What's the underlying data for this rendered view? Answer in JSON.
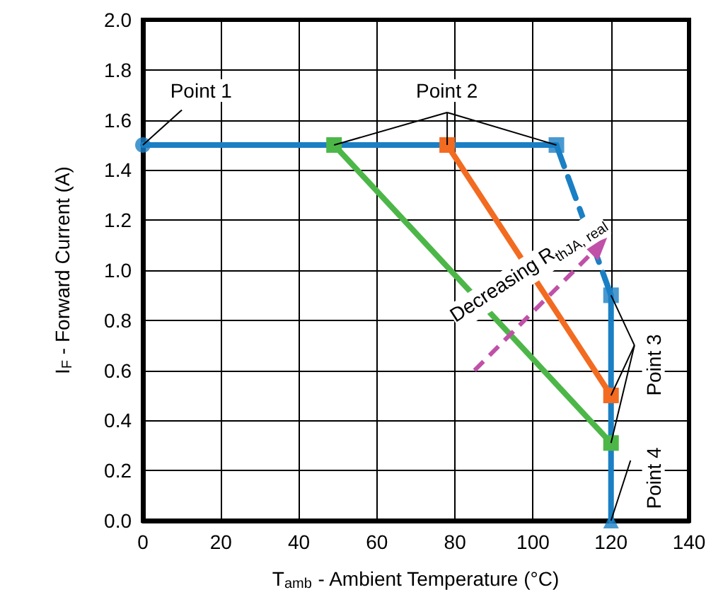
{
  "chart_data": {
    "type": "line",
    "xlabel": "T$_{amb}$ - Ambient Temperature (°C)",
    "ylabel": "I$_{F}$ - Forward Current (A)",
    "xlim": [
      0,
      140
    ],
    "xticks": [
      0,
      20,
      40,
      60,
      80,
      100,
      120,
      140
    ],
    "ylim": [
      0,
      2
    ],
    "yticks": [
      {
        "value": 0,
        "label": "0.0"
      },
      0.2,
      0.4,
      0.6,
      0.8,
      {
        "value": 1,
        "label": "1.0"
      },
      1.2,
      1.4,
      1.6,
      1.8,
      {
        "value": 2,
        "label": "2.0"
      }
    ],
    "grid": true,
    "series": [
      {
        "color": "#1a7fc4",
        "x": [
          0,
          106
        ],
        "values": [
          1.5,
          1.5
        ],
        "marker": "none",
        "line_style": "solid"
      },
      {
        "color": "#1a7fc4",
        "x": [
          106,
          120
        ],
        "values": [
          1.5,
          0.9
        ],
        "marker": "none",
        "line_style": "dashed"
      },
      {
        "color": "#1a7fc4",
        "x": [
          120,
          120
        ],
        "values": [
          0.9,
          0
        ],
        "marker": "none",
        "line_style": "solid"
      },
      {
        "type": "scatter",
        "color": "#1a7fc4",
        "x": [
          0
        ],
        "values": [
          1.5
        ],
        "marker": "circle"
      },
      {
        "type": "scatter",
        "color": "#1a7fc4",
        "x": [
          106,
          120
        ],
        "values": [
          1.5,
          0.9
        ],
        "marker": "square"
      },
      {
        "type": "scatter",
        "color": "#1a7fc4",
        "x": [
          120
        ],
        "values": [
          0
        ],
        "marker": "triangle"
      },
      {
        "color": "#f26b21",
        "x": [
          78,
          120
        ],
        "values": [
          1.5,
          0.5
        ],
        "marker": "square",
        "line_style": "solid"
      },
      {
        "color": "#4cb748",
        "x": [
          49,
          120
        ],
        "values": [
          1.5,
          0.31
        ],
        "marker": "square",
        "line_style": "solid"
      }
    ],
    "annotations": [
      {
        "text": "Point 1",
        "x": 0,
        "y": 1.5
      },
      {
        "text": "Point 2",
        "x": 78,
        "y": 1.5
      },
      {
        "text": "Point 3",
        "x": 120,
        "y": 0.5
      },
      {
        "text": "Point 4",
        "x": 120,
        "y": 0
      },
      "Decreasing R$_{thJA, real}$"
    ]
  }
}
